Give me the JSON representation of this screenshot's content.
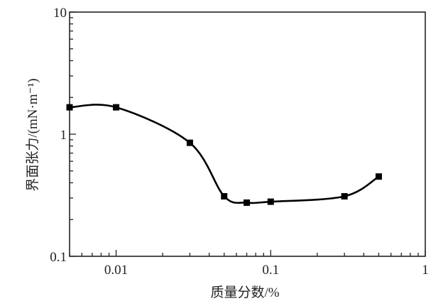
{
  "chart_data": {
    "type": "line",
    "xlabel": "质量分数/%",
    "ylabel": "界面张力/(mN·m⁻¹)",
    "x_scale": "log",
    "y_scale": "log",
    "xlim": [
      0.005,
      1
    ],
    "ylim": [
      0.1,
      10
    ],
    "x_ticks": [
      {
        "value": 0.01,
        "label": "0.01"
      },
      {
        "value": 0.1,
        "label": "0.1"
      },
      {
        "value": 1,
        "label": "1"
      }
    ],
    "y_ticks": [
      {
        "value": 0.1,
        "label": "0.1"
      },
      {
        "value": 1,
        "label": "1"
      },
      {
        "value": 10,
        "label": "10"
      }
    ],
    "grid": false,
    "marker": "square",
    "line": "smooth",
    "color": "#000000",
    "series": [
      {
        "x": [
          0.005,
          0.01,
          0.03,
          0.05,
          0.07,
          0.1,
          0.3,
          0.5
        ],
        "y": [
          1.66,
          1.66,
          0.85,
          0.31,
          0.275,
          0.28,
          0.31,
          0.45
        ]
      }
    ]
  }
}
